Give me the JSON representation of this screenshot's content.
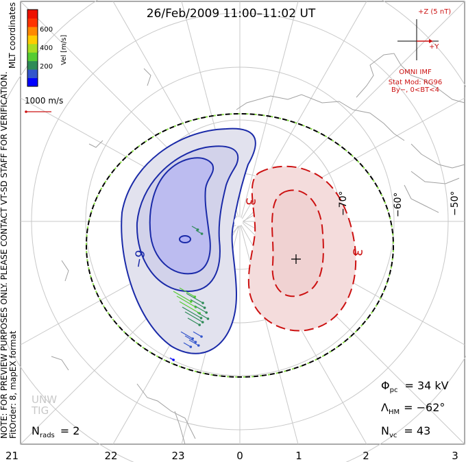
{
  "title": "26/Feb/2009  11:00–11:02  UT",
  "colorbar": {
    "ticks": [
      "600",
      "400",
      "200"
    ],
    "label": "Vel [m/s]",
    "colors": [
      "#0000ff",
      "#3355cc",
      "#2e8b57",
      "#55cc33",
      "#aadd22",
      "#ffcc00",
      "#ff8800",
      "#ff3300",
      "#ee1100"
    ]
  },
  "coord_label": "MLT coordinates",
  "note_lines": [
    "NOTE: FOR PREVIEW PURPOSES ONLY. PLEASE CONTACT VT-SD STAFF FOR VERIFICATION.",
    "FitOrder: 8, mapEX format"
  ],
  "scale_vector_label": "1000 m/s",
  "imf": {
    "z_label": "+Z (5 nT)",
    "y_label": "+Y",
    "omni": "OMNI IMF",
    "model": "Stat Mod: RG96",
    "condition": "By−, 0<BT<4"
  },
  "lat_labels": [
    "−70°",
    "−60°",
    "−50°"
  ],
  "contour_labels": {
    "neg": "−9",
    "pos": "3",
    "pos2": "3"
  },
  "stats": {
    "phi_pc": "Φ",
    "phi_sub": "pc",
    "phi_value": "=  34 kV",
    "lambda": "Λ",
    "lambda_sub": "HM",
    "lambda_value": "=  −62°",
    "nvc": "N",
    "nvc_sub": "vc",
    "nvc_value": "=  43",
    "nrads": "N",
    "nrads_sub": "rads",
    "nrads_value": "=  2"
  },
  "watermark": [
    "UNW",
    "TIG"
  ],
  "mlt_ticks": [
    "21",
    "22",
    "23",
    "0",
    "1",
    "2",
    "3"
  ]
}
